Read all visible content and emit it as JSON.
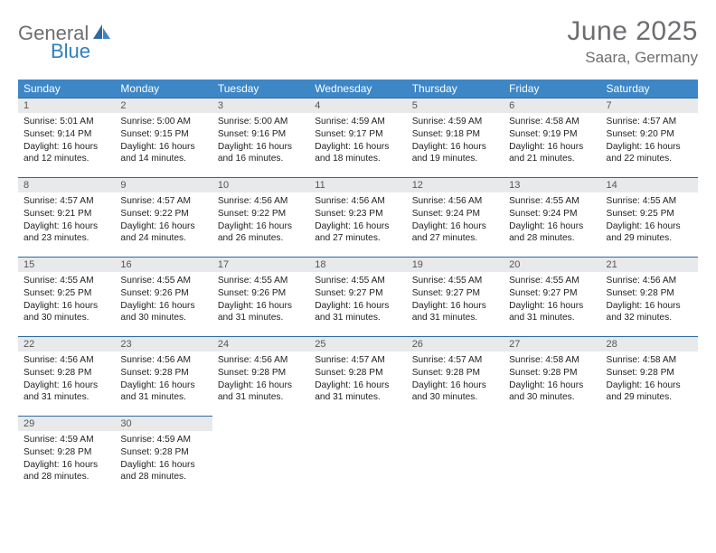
{
  "brand": {
    "part1": "General",
    "part2": "Blue"
  },
  "title": "June 2025",
  "location": "Saara, Germany",
  "colors": {
    "header_bg": "#3d87c7",
    "daynum_bg": "#e8e9ea",
    "border": "#2d6aa0",
    "text_gray": "#6d6e71",
    "logo_blue": "#2f7fbf"
  },
  "weekdays": [
    "Sunday",
    "Monday",
    "Tuesday",
    "Wednesday",
    "Thursday",
    "Friday",
    "Saturday"
  ],
  "days": [
    {
      "n": "1",
      "sr": "5:01 AM",
      "ss": "9:14 PM",
      "dl": "16 hours and 12 minutes."
    },
    {
      "n": "2",
      "sr": "5:00 AM",
      "ss": "9:15 PM",
      "dl": "16 hours and 14 minutes."
    },
    {
      "n": "3",
      "sr": "5:00 AM",
      "ss": "9:16 PM",
      "dl": "16 hours and 16 minutes."
    },
    {
      "n": "4",
      "sr": "4:59 AM",
      "ss": "9:17 PM",
      "dl": "16 hours and 18 minutes."
    },
    {
      "n": "5",
      "sr": "4:59 AM",
      "ss": "9:18 PM",
      "dl": "16 hours and 19 minutes."
    },
    {
      "n": "6",
      "sr": "4:58 AM",
      "ss": "9:19 PM",
      "dl": "16 hours and 21 minutes."
    },
    {
      "n": "7",
      "sr": "4:57 AM",
      "ss": "9:20 PM",
      "dl": "16 hours and 22 minutes."
    },
    {
      "n": "8",
      "sr": "4:57 AM",
      "ss": "9:21 PM",
      "dl": "16 hours and 23 minutes."
    },
    {
      "n": "9",
      "sr": "4:57 AM",
      "ss": "9:22 PM",
      "dl": "16 hours and 24 minutes."
    },
    {
      "n": "10",
      "sr": "4:56 AM",
      "ss": "9:22 PM",
      "dl": "16 hours and 26 minutes."
    },
    {
      "n": "11",
      "sr": "4:56 AM",
      "ss": "9:23 PM",
      "dl": "16 hours and 27 minutes."
    },
    {
      "n": "12",
      "sr": "4:56 AM",
      "ss": "9:24 PM",
      "dl": "16 hours and 27 minutes."
    },
    {
      "n": "13",
      "sr": "4:55 AM",
      "ss": "9:24 PM",
      "dl": "16 hours and 28 minutes."
    },
    {
      "n": "14",
      "sr": "4:55 AM",
      "ss": "9:25 PM",
      "dl": "16 hours and 29 minutes."
    },
    {
      "n": "15",
      "sr": "4:55 AM",
      "ss": "9:25 PM",
      "dl": "16 hours and 30 minutes."
    },
    {
      "n": "16",
      "sr": "4:55 AM",
      "ss": "9:26 PM",
      "dl": "16 hours and 30 minutes."
    },
    {
      "n": "17",
      "sr": "4:55 AM",
      "ss": "9:26 PM",
      "dl": "16 hours and 31 minutes."
    },
    {
      "n": "18",
      "sr": "4:55 AM",
      "ss": "9:27 PM",
      "dl": "16 hours and 31 minutes."
    },
    {
      "n": "19",
      "sr": "4:55 AM",
      "ss": "9:27 PM",
      "dl": "16 hours and 31 minutes."
    },
    {
      "n": "20",
      "sr": "4:55 AM",
      "ss": "9:27 PM",
      "dl": "16 hours and 31 minutes."
    },
    {
      "n": "21",
      "sr": "4:56 AM",
      "ss": "9:28 PM",
      "dl": "16 hours and 32 minutes."
    },
    {
      "n": "22",
      "sr": "4:56 AM",
      "ss": "9:28 PM",
      "dl": "16 hours and 31 minutes."
    },
    {
      "n": "23",
      "sr": "4:56 AM",
      "ss": "9:28 PM",
      "dl": "16 hours and 31 minutes."
    },
    {
      "n": "24",
      "sr": "4:56 AM",
      "ss": "9:28 PM",
      "dl": "16 hours and 31 minutes."
    },
    {
      "n": "25",
      "sr": "4:57 AM",
      "ss": "9:28 PM",
      "dl": "16 hours and 31 minutes."
    },
    {
      "n": "26",
      "sr": "4:57 AM",
      "ss": "9:28 PM",
      "dl": "16 hours and 30 minutes."
    },
    {
      "n": "27",
      "sr": "4:58 AM",
      "ss": "9:28 PM",
      "dl": "16 hours and 30 minutes."
    },
    {
      "n": "28",
      "sr": "4:58 AM",
      "ss": "9:28 PM",
      "dl": "16 hours and 29 minutes."
    },
    {
      "n": "29",
      "sr": "4:59 AM",
      "ss": "9:28 PM",
      "dl": "16 hours and 28 minutes."
    },
    {
      "n": "30",
      "sr": "4:59 AM",
      "ss": "9:28 PM",
      "dl": "16 hours and 28 minutes."
    }
  ],
  "labels": {
    "sunrise": "Sunrise:",
    "sunset": "Sunset:",
    "daylight": "Daylight:"
  },
  "layout": {
    "start_weekday": 0,
    "total_days": 30,
    "cols": 7
  }
}
